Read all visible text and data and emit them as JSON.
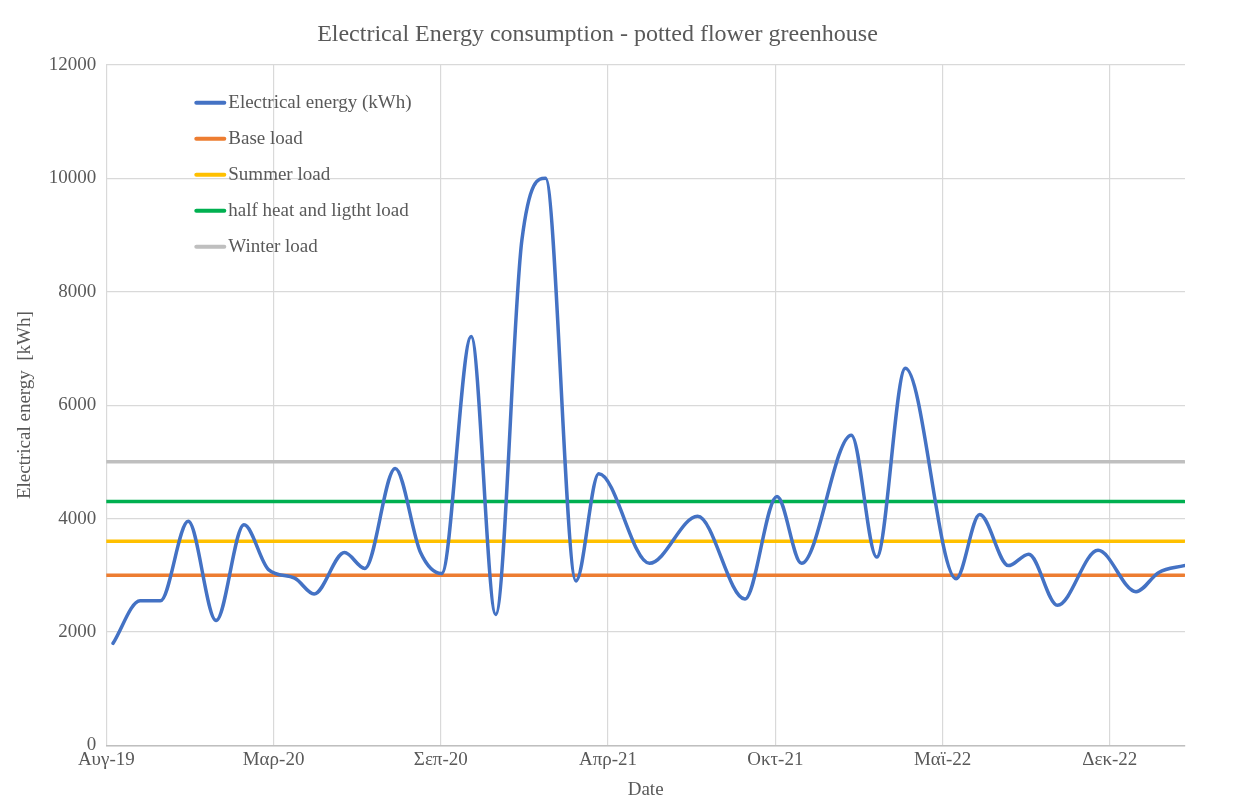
{
  "chart_data": {
    "type": "line",
    "title": "Electrical Energy consumption - potted flower greenhouse",
    "xlabel": "Date",
    "ylabel": "Electrical energy  [kWh]",
    "xlim": [
      "2019-08-31",
      "2023-02-28"
    ],
    "xticks": [
      {
        "value": "2019-08-31",
        "label": "Αυγ-19"
      },
      {
        "value": "2020-03-16",
        "label": "Μαρ-20"
      },
      {
        "value": "2020-09-30",
        "label": "Σεπ-20"
      },
      {
        "value": "2021-04-16",
        "label": "Απρ-21"
      },
      {
        "value": "2021-10-31",
        "label": "Οκτ-21"
      },
      {
        "value": "2022-05-17",
        "label": "Μαϊ-22"
      },
      {
        "value": "2022-12-01",
        "label": "Δεκ-22"
      }
    ],
    "ylim": [
      0,
      12000
    ],
    "yticks": [
      0,
      2000,
      4000,
      6000,
      8000,
      10000,
      12000
    ],
    "grid": true,
    "legend": "top left",
    "marker": "none",
    "line_style": "solid",
    "series": [
      {
        "name": "Electrical energy (kWh)",
        "color": "#4472c4",
        "x": [
          "2019-09-08",
          "2019-10-10",
          "2019-11-03",
          "2019-12-06",
          "2020-01-08",
          "2020-02-10",
          "2020-03-10",
          "2020-04-10",
          "2020-05-03",
          "2020-06-08",
          "2020-07-02",
          "2020-08-07",
          "2020-09-06",
          "2020-10-01",
          "2020-11-05",
          "2020-12-04",
          "2021-01-04",
          "2021-02-01",
          "2021-03-09",
          "2021-04-05",
          "2021-06-04",
          "2021-07-31",
          "2021-09-25",
          "2021-11-02",
          "2021-12-01",
          "2022-01-29",
          "2022-02-28",
          "2022-04-03",
          "2022-06-02",
          "2022-06-30",
          "2022-08-03",
          "2022-08-27",
          "2022-09-30",
          "2022-11-17",
          "2023-01-01",
          "2023-01-28",
          "2023-02-27"
        ],
        "values": [
          1800,
          2550,
          2550,
          3950,
          2200,
          3890,
          3100,
          2950,
          2670,
          3400,
          3120,
          4880,
          3400,
          3030,
          7210,
          2310,
          8910,
          10000,
          2900,
          4790,
          3210,
          4040,
          2580,
          4390,
          3210,
          5470,
          3320,
          6650,
          2940,
          4070,
          3170,
          3370,
          2470,
          3440,
          2710,
          3050,
          3170
        ]
      },
      {
        "name": "Base load",
        "color": "#ed7d31",
        "x": [
          "2019-08-31",
          "2023-02-27"
        ],
        "values": [
          3000,
          3000
        ]
      },
      {
        "name": "Summer load",
        "color": "#ffc000",
        "x": [
          "2019-08-31",
          "2023-02-27"
        ],
        "values": [
          3600,
          3600
        ]
      },
      {
        "name": "half heat and ligtht load",
        "color": "#00b050",
        "x": [
          "2019-08-31",
          "2023-02-27"
        ],
        "values": [
          4300,
          4300
        ]
      },
      {
        "name": "Winter load",
        "color": "#bfbfbf",
        "x": [
          "2019-08-31",
          "2023-02-27"
        ],
        "values": [
          5000,
          5000
        ]
      }
    ]
  }
}
